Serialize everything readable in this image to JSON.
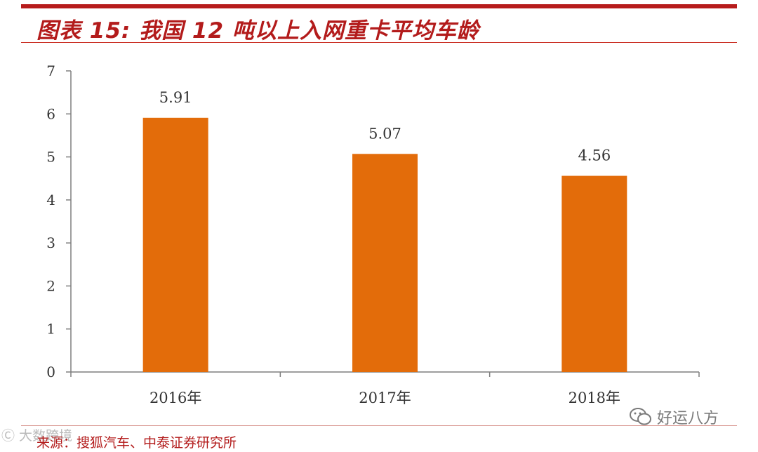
{
  "title": "图表 15:  我国 12 吨以上入网重卡平均车龄",
  "source": "来源：搜狐汽车、中泰证券研究所",
  "watermark_left": "Ⓒ 大数跨境",
  "watermark_right": "好运八方",
  "chart_data": {
    "type": "bar",
    "categories": [
      "2016年",
      "2017年",
      "2018年"
    ],
    "values": [
      5.91,
      5.07,
      4.56
    ],
    "value_labels": [
      "5.91",
      "5.07",
      "4.56"
    ],
    "ylim": [
      0,
      7
    ],
    "yticks": [
      "0",
      "1",
      "2",
      "3",
      "4",
      "5",
      "6",
      "7"
    ],
    "bar_color": "#e36c0a",
    "grid": false,
    "legend": "none"
  }
}
